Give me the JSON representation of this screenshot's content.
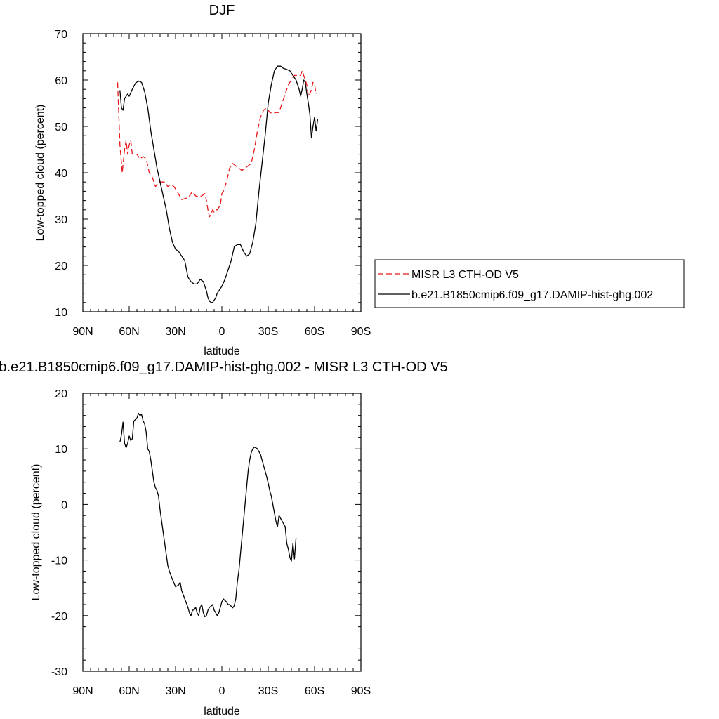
{
  "chart_data": [
    {
      "type": "line",
      "title": "DJF",
      "xlabel": "latitude",
      "ylabel": "Low-topped cloud (percent)",
      "xlim": [
        -90,
        90
      ],
      "ylim": [
        10,
        70
      ],
      "x_ticks": [
        -90,
        -60,
        -30,
        0,
        30,
        60,
        90
      ],
      "x_tick_labels": [
        "90N",
        "60N",
        "30N",
        "0",
        "30S",
        "60S",
        "90S"
      ],
      "y_ticks": [
        10,
        20,
        30,
        40,
        50,
        60,
        70
      ],
      "y_tick_labels": [
        "10",
        "20",
        "30",
        "40",
        "50",
        "60",
        "70"
      ],
      "grid": false,
      "legend_position": "right",
      "series": [
        {
          "name": "MISR L3 CTH-OD V5",
          "color": "#e8171b",
          "style": "dashed",
          "points": [
            [
              -67.5,
              59.5
            ],
            [
              -66,
              46
            ],
            [
              -64.5,
              40
            ],
            [
              -63,
              45
            ],
            [
              -62,
              47
            ],
            [
              -61,
              44
            ],
            [
              -60,
              46
            ],
            [
              -59,
              47
            ],
            [
              -58,
              44
            ],
            [
              -55,
              44
            ],
            [
              -53,
              43
            ],
            [
              -51,
              43.5
            ],
            [
              -49,
              43
            ],
            [
              -47,
              40
            ],
            [
              -45,
              39
            ],
            [
              -43,
              37
            ],
            [
              -41,
              38
            ],
            [
              -39,
              38
            ],
            [
              -37,
              38
            ],
            [
              -35,
              37
            ],
            [
              -33,
              37.5
            ],
            [
              -31,
              37
            ],
            [
              -29,
              36
            ],
            [
              -26,
              34.2
            ],
            [
              -23,
              34.5
            ],
            [
              -21,
              35
            ],
            [
              -19,
              36
            ],
            [
              -17,
              35
            ],
            [
              -15,
              34.8
            ],
            [
              -13,
              35
            ],
            [
              -11,
              35.5
            ],
            [
              -10,
              34
            ],
            [
              -9,
              32
            ],
            [
              -8,
              30.5
            ],
            [
              -7,
              31
            ],
            [
              -6,
              32
            ],
            [
              -5,
              31.5
            ],
            [
              -4,
              32
            ],
            [
              -3,
              32
            ],
            [
              -2,
              32.5
            ],
            [
              -1,
              33
            ],
            [
              0,
              35.5
            ],
            [
              1,
              36
            ],
            [
              3,
              38
            ],
            [
              5,
              41
            ],
            [
              7,
              42
            ],
            [
              9,
              41.5
            ],
            [
              11,
              41
            ],
            [
              13,
              40.5
            ],
            [
              15,
              41
            ],
            [
              17,
              41.5
            ],
            [
              19,
              42
            ],
            [
              21,
              45
            ],
            [
              23,
              49
            ],
            [
              25,
              52
            ],
            [
              27,
              53.5
            ],
            [
              29,
              54
            ],
            [
              31,
              53
            ],
            [
              33,
              52.8
            ],
            [
              35,
              53
            ],
            [
              37,
              53
            ],
            [
              39,
              55
            ],
            [
              41,
              57
            ],
            [
              43,
              59
            ],
            [
              45,
              60
            ],
            [
              47,
              61
            ],
            [
              49,
              61
            ],
            [
              51,
              61
            ],
            [
              52,
              62
            ],
            [
              53,
              61
            ],
            [
              54,
              60
            ],
            [
              55,
              59
            ],
            [
              56,
              56.5
            ],
            [
              57,
              57
            ],
            [
              58,
              58
            ],
            [
              59,
              59.5
            ],
            [
              60,
              59
            ],
            [
              61,
              57
            ]
          ]
        },
        {
          "name": "b.e21.B1850cmip6.f09_g17.DAMIP-hist-ghg.002",
          "color": "#000000",
          "style": "solid",
          "points": [
            [
              -66,
              57.8
            ],
            [
              -65,
              54
            ],
            [
              -64,
              53.5
            ],
            [
              -63,
              56
            ],
            [
              -61,
              57
            ],
            [
              -60,
              56.5
            ],
            [
              -58,
              58
            ],
            [
              -56,
              59.3
            ],
            [
              -54,
              59.8
            ],
            [
              -52,
              59.5
            ],
            [
              -50,
              57.5
            ],
            [
              -48,
              54
            ],
            [
              -46,
              49
            ],
            [
              -44,
              45
            ],
            [
              -42,
              41
            ],
            [
              -40,
              38
            ],
            [
              -38,
              35
            ],
            [
              -36,
              32
            ],
            [
              -34,
              28
            ],
            [
              -32,
              25
            ],
            [
              -30,
              23.5
            ],
            [
              -28,
              23
            ],
            [
              -26,
              22
            ],
            [
              -24,
              21
            ],
            [
              -22,
              17.5
            ],
            [
              -20,
              16.5
            ],
            [
              -18,
              16
            ],
            [
              -16,
              16
            ],
            [
              -14,
              17
            ],
            [
              -12,
              16.5
            ],
            [
              -10,
              14.5
            ],
            [
              -9,
              13
            ],
            [
              -8,
              12.3
            ],
            [
              -7,
              12
            ],
            [
              -6,
              12
            ],
            [
              -5,
              12.5
            ],
            [
              -4,
              13
            ],
            [
              -3,
              14
            ],
            [
              -2,
              14.5
            ],
            [
              -1,
              15
            ],
            [
              0,
              15.5
            ],
            [
              2,
              17
            ],
            [
              4,
              19
            ],
            [
              6,
              21
            ],
            [
              8,
              24
            ],
            [
              10,
              24.5
            ],
            [
              12,
              24.5
            ],
            [
              14,
              23
            ],
            [
              16,
              22
            ],
            [
              18,
              22.5
            ],
            [
              20,
              25
            ],
            [
              22,
              29
            ],
            [
              24,
              36
            ],
            [
              26,
              42
            ],
            [
              28,
              48
            ],
            [
              30,
              55
            ],
            [
              32,
              59
            ],
            [
              34,
              62
            ],
            [
              36,
              63
            ],
            [
              38,
              63
            ],
            [
              40,
              62.5
            ],
            [
              42,
              62.3
            ],
            [
              44,
              62
            ],
            [
              46,
              61
            ],
            [
              48,
              60
            ],
            [
              50,
              58
            ],
            [
              51,
              56.5
            ],
            [
              52,
              58
            ],
            [
              53,
              60
            ],
            [
              54,
              59.5
            ],
            [
              55,
              57
            ],
            [
              56,
              55
            ],
            [
              57,
              52.5
            ],
            [
              58,
              47.5
            ],
            [
              59,
              50
            ],
            [
              60,
              52
            ],
            [
              61,
              49
            ],
            [
              62,
              51.5
            ]
          ]
        }
      ]
    },
    {
      "type": "line",
      "title": "b.e21.B1850cmip6.f09_g17.DAMIP-hist-ghg.002 - MISR L3 CTH-OD V5",
      "xlabel": "latitude",
      "ylabel": "Low-topped cloud (percent)",
      "xlim": [
        -90,
        90
      ],
      "ylim": [
        -30,
        20
      ],
      "x_ticks": [
        -90,
        -60,
        -30,
        0,
        30,
        60,
        90
      ],
      "x_tick_labels": [
        "90N",
        "60N",
        "30N",
        "0",
        "30S",
        "60S",
        "90S"
      ],
      "y_ticks": [
        -30,
        -20,
        -10,
        0,
        10,
        20
      ],
      "y_tick_labels": [
        "-30",
        "-20",
        "-10",
        "0",
        "10",
        "20"
      ],
      "grid": false,
      "series": [
        {
          "color": "#000000",
          "style": "solid",
          "points": [
            [
              -66,
              11.2
            ],
            [
              -65,
              12.5
            ],
            [
              -64,
              14.8
            ],
            [
              -63,
              11
            ],
            [
              -62,
              10.2
            ],
            [
              -61,
              11
            ],
            [
              -60,
              12.3
            ],
            [
              -59,
              11.5
            ],
            [
              -58,
              11.8
            ],
            [
              -57,
              15
            ],
            [
              -55,
              15.5
            ],
            [
              -54,
              16.4
            ],
            [
              -53,
              16
            ],
            [
              -52,
              16.2
            ],
            [
              -51,
              15
            ],
            [
              -50,
              14.5
            ],
            [
              -49,
              13
            ],
            [
              -48,
              10
            ],
            [
              -47,
              9.5
            ],
            [
              -46,
              8
            ],
            [
              -45,
              6
            ],
            [
              -44,
              4
            ],
            [
              -43,
              3
            ],
            [
              -42,
              2.5
            ],
            [
              -41,
              1.5
            ],
            [
              -40,
              -1
            ],
            [
              -39,
              -3
            ],
            [
              -38,
              -5
            ],
            [
              -37,
              -7
            ],
            [
              -36,
              -9
            ],
            [
              -35,
              -11
            ],
            [
              -34,
              -12
            ],
            [
              -32,
              -13.5
            ],
            [
              -30,
              -14.8
            ],
            [
              -28,
              -14.5
            ],
            [
              -27,
              -14
            ],
            [
              -26,
              -15.5
            ],
            [
              -24,
              -17
            ],
            [
              -22,
              -18.5
            ],
            [
              -21,
              -19.5
            ],
            [
              -20,
              -20
            ],
            [
              -19,
              -19
            ],
            [
              -18,
              -19
            ],
            [
              -17,
              -18.5
            ],
            [
              -16,
              -19.5
            ],
            [
              -15,
              -20
            ],
            [
              -14,
              -18.5
            ],
            [
              -13,
              -18
            ],
            [
              -12,
              -19.5
            ],
            [
              -11,
              -20.2
            ],
            [
              -10,
              -20
            ],
            [
              -9,
              -19
            ],
            [
              -8,
              -18.5
            ],
            [
              -7,
              -18.3
            ],
            [
              -6,
              -18
            ],
            [
              -5,
              -19
            ],
            [
              -4,
              -19.5
            ],
            [
              -3,
              -20
            ],
            [
              -2,
              -19.5
            ],
            [
              -1,
              -18.5
            ],
            [
              0,
              -17.5
            ],
            [
              1,
              -17
            ],
            [
              2,
              -17.3
            ],
            [
              3,
              -17.5
            ],
            [
              4,
              -18
            ],
            [
              5,
              -18
            ],
            [
              6,
              -18.3
            ],
            [
              7,
              -18.6
            ],
            [
              8,
              -18.2
            ],
            [
              9,
              -17
            ],
            [
              10,
              -14
            ],
            [
              11,
              -12
            ],
            [
              12,
              -9
            ],
            [
              13,
              -6
            ],
            [
              14,
              -3
            ],
            [
              15,
              0
            ],
            [
              16,
              3
            ],
            [
              17,
              6
            ],
            [
              18,
              8
            ],
            [
              19,
              9.3
            ],
            [
              20,
              10
            ],
            [
              21,
              10.3
            ],
            [
              22,
              10.2
            ],
            [
              23,
              10
            ],
            [
              24,
              9.5
            ],
            [
              25,
              9
            ],
            [
              26,
              8
            ],
            [
              27,
              7
            ],
            [
              28,
              6
            ],
            [
              29,
              5
            ],
            [
              30,
              3.8
            ],
            [
              31,
              2.5
            ],
            [
              32,
              1.5
            ],
            [
              33,
              0
            ],
            [
              34,
              -1.5
            ],
            [
              35,
              -3
            ],
            [
              36,
              -4
            ],
            [
              37,
              -2
            ],
            [
              38,
              -2.5
            ],
            [
              39,
              -3
            ],
            [
              40,
              -3.5
            ],
            [
              41,
              -4
            ],
            [
              42,
              -7
            ],
            [
              43,
              -8
            ],
            [
              44,
              -9.5
            ],
            [
              45,
              -10.2
            ],
            [
              46,
              -7
            ],
            [
              47,
              -9.8
            ],
            [
              48,
              -6
            ]
          ]
        }
      ]
    }
  ]
}
